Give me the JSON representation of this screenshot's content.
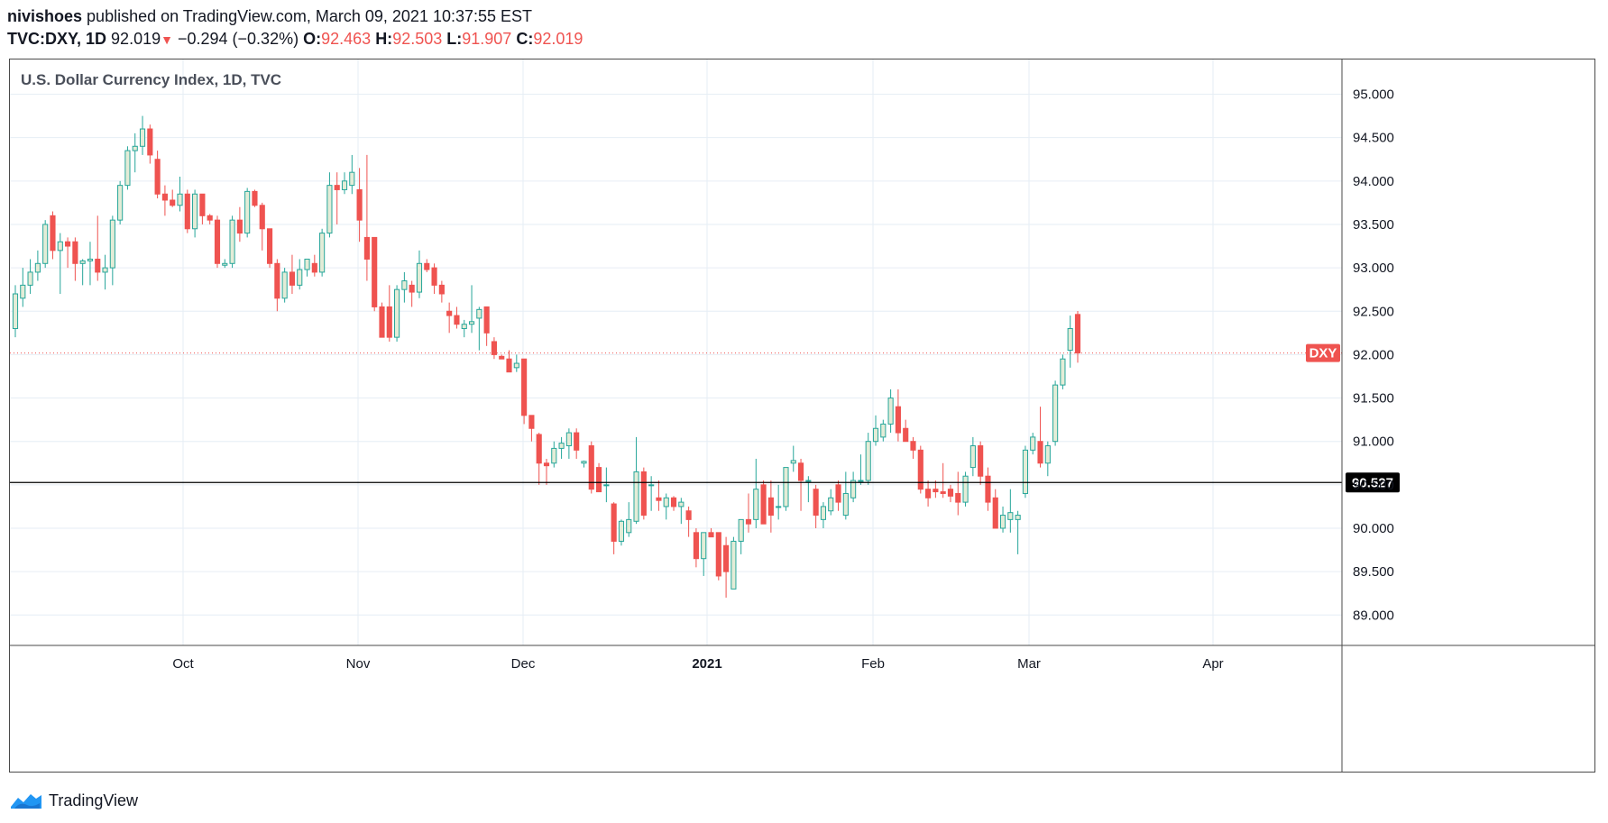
{
  "header": {
    "author": "nivishoes",
    "published_text": "published on TradingView.com, March 09, 2021 10:37:55 EST",
    "symbol": "TVC:DXY, 1D",
    "last": "92.019",
    "change": "−0.294 (−0.32%)",
    "o_label": "O:",
    "o_value": "92.463",
    "h_label": "H:",
    "h_value": "92.503",
    "l_label": "L:",
    "l_value": "91.907",
    "c_label": "C:",
    "c_value": "92.019"
  },
  "footer": {
    "brand": "TradingView"
  },
  "colors": {
    "up_fill": "#e3ecd7",
    "up_border": "#26a69a",
    "down_fill": "#ef5350",
    "down_border": "#ef5350",
    "grid": "#e6eef5",
    "axis_text": "#131722",
    "price_line": "#ef5350",
    "h_line": "#000000"
  },
  "chart_data": {
    "type": "candlestick",
    "title": "U.S. Dollar Currency Index, 1D, TVC",
    "symbol_tag": "DXY",
    "last_price_label": "92.019",
    "last_price": 92.019,
    "horizontal_line_label": "90.527",
    "horizontal_line": 90.527,
    "ylim": [
      88.65,
      95.4
    ],
    "y_ticks": [
      "95.000",
      "94.500",
      "94.000",
      "93.500",
      "93.000",
      "92.500",
      "92.000",
      "91.500",
      "91.000",
      "90.500",
      "90.000",
      "89.500",
      "89.000"
    ],
    "x_ticks": [
      "Oct",
      "Nov",
      "Dec",
      "2021",
      "Feb",
      "Mar",
      "Apr"
    ],
    "grid": true,
    "candles": [
      {
        "o": 92.3,
        "h": 92.8,
        "l": 92.2,
        "c": 92.7
      },
      {
        "o": 92.65,
        "h": 93.0,
        "l": 92.55,
        "c": 92.8
      },
      {
        "o": 92.8,
        "h": 93.1,
        "l": 92.7,
        "c": 92.95
      },
      {
        "o": 92.95,
        "h": 93.2,
        "l": 92.85,
        "c": 93.05
      },
      {
        "o": 93.05,
        "h": 93.55,
        "l": 93.0,
        "c": 93.5
      },
      {
        "o": 93.6,
        "h": 93.65,
        "l": 93.1,
        "c": 93.2
      },
      {
        "o": 93.2,
        "h": 93.4,
        "l": 92.7,
        "c": 93.3
      },
      {
        "o": 93.3,
        "h": 93.35,
        "l": 93.0,
        "c": 93.25
      },
      {
        "o": 93.3,
        "h": 93.35,
        "l": 92.85,
        "c": 93.05
      },
      {
        "o": 93.05,
        "h": 93.1,
        "l": 92.8,
        "c": 93.08
      },
      {
        "o": 93.08,
        "h": 93.3,
        "l": 92.8,
        "c": 93.1
      },
      {
        "o": 93.1,
        "h": 93.6,
        "l": 92.85,
        "c": 92.95
      },
      {
        "o": 92.95,
        "h": 93.15,
        "l": 92.75,
        "c": 93.0
      },
      {
        "o": 93.0,
        "h": 93.6,
        "l": 92.8,
        "c": 93.55
      },
      {
        "o": 93.55,
        "h": 94.0,
        "l": 93.5,
        "c": 93.95
      },
      {
        "o": 93.95,
        "h": 94.4,
        "l": 93.9,
        "c": 94.35
      },
      {
        "o": 94.35,
        "h": 94.55,
        "l": 94.1,
        "c": 94.4
      },
      {
        "o": 94.4,
        "h": 94.75,
        "l": 94.3,
        "c": 94.6
      },
      {
        "o": 94.6,
        "h": 94.65,
        "l": 94.2,
        "c": 94.3
      },
      {
        "o": 94.25,
        "h": 94.35,
        "l": 93.8,
        "c": 93.85
      },
      {
        "o": 93.85,
        "h": 93.95,
        "l": 93.6,
        "c": 93.78
      },
      {
        "o": 93.78,
        "h": 93.9,
        "l": 93.7,
        "c": 93.72
      },
      {
        "o": 93.72,
        "h": 94.05,
        "l": 93.65,
        "c": 93.85
      },
      {
        "o": 93.85,
        "h": 93.9,
        "l": 93.4,
        "c": 93.45
      },
      {
        "o": 93.45,
        "h": 93.9,
        "l": 93.35,
        "c": 93.85
      },
      {
        "o": 93.85,
        "h": 93.85,
        "l": 93.5,
        "c": 93.6
      },
      {
        "o": 93.6,
        "h": 93.62,
        "l": 93.5,
        "c": 93.55
      },
      {
        "o": 93.55,
        "h": 93.6,
        "l": 93.0,
        "c": 93.05
      },
      {
        "o": 93.03,
        "h": 93.1,
        "l": 93.0,
        "c": 93.05
      },
      {
        "o": 93.05,
        "h": 93.6,
        "l": 93.0,
        "c": 93.55
      },
      {
        "o": 93.55,
        "h": 93.7,
        "l": 93.3,
        "c": 93.4
      },
      {
        "o": 93.4,
        "h": 93.92,
        "l": 93.35,
        "c": 93.88
      },
      {
        "o": 93.88,
        "h": 93.9,
        "l": 93.7,
        "c": 93.72
      },
      {
        "o": 93.72,
        "h": 93.75,
        "l": 93.2,
        "c": 93.45
      },
      {
        "o": 93.45,
        "h": 93.45,
        "l": 93.0,
        "c": 93.05
      },
      {
        "o": 93.05,
        "h": 93.1,
        "l": 92.5,
        "c": 92.65
      },
      {
        "o": 92.65,
        "h": 93.0,
        "l": 92.6,
        "c": 92.95
      },
      {
        "o": 92.95,
        "h": 93.15,
        "l": 92.7,
        "c": 92.8
      },
      {
        "o": 92.8,
        "h": 93.1,
        "l": 92.75,
        "c": 92.98
      },
      {
        "o": 92.98,
        "h": 93.1,
        "l": 92.9,
        "c": 93.1
      },
      {
        "o": 93.05,
        "h": 93.15,
        "l": 92.9,
        "c": 92.95
      },
      {
        "o": 92.95,
        "h": 93.45,
        "l": 92.9,
        "c": 93.4
      },
      {
        "o": 93.4,
        "h": 94.1,
        "l": 93.35,
        "c": 93.95
      },
      {
        "o": 93.95,
        "h": 94.1,
        "l": 93.5,
        "c": 93.9
      },
      {
        "o": 93.9,
        "h": 94.1,
        "l": 93.85,
        "c": 94.0
      },
      {
        "o": 93.95,
        "h": 94.3,
        "l": 93.85,
        "c": 94.1
      },
      {
        "o": 93.9,
        "h": 94.15,
        "l": 93.3,
        "c": 93.55
      },
      {
        "o": 93.35,
        "h": 94.3,
        "l": 92.85,
        "c": 93.1
      },
      {
        "o": 93.35,
        "h": 93.35,
        "l": 92.5,
        "c": 92.55
      },
      {
        "o": 92.55,
        "h": 92.6,
        "l": 92.25,
        "c": 92.2
      },
      {
        "o": 92.55,
        "h": 92.8,
        "l": 92.15,
        "c": 92.2
      },
      {
        "o": 92.2,
        "h": 92.8,
        "l": 92.15,
        "c": 92.75
      },
      {
        "o": 92.75,
        "h": 92.95,
        "l": 92.6,
        "c": 92.85
      },
      {
        "o": 92.8,
        "h": 92.85,
        "l": 92.55,
        "c": 92.72
      },
      {
        "o": 92.72,
        "h": 93.2,
        "l": 92.65,
        "c": 93.05
      },
      {
        "o": 93.05,
        "h": 93.1,
        "l": 92.95,
        "c": 92.98
      },
      {
        "o": 93.0,
        "h": 93.05,
        "l": 92.7,
        "c": 92.8
      },
      {
        "o": 92.8,
        "h": 92.85,
        "l": 92.6,
        "c": 92.7
      },
      {
        "o": 92.5,
        "h": 92.6,
        "l": 92.25,
        "c": 92.45
      },
      {
        "o": 92.45,
        "h": 92.55,
        "l": 92.3,
        "c": 92.35
      },
      {
        "o": 92.3,
        "h": 92.4,
        "l": 92.2,
        "c": 92.35
      },
      {
        "o": 92.35,
        "h": 92.8,
        "l": 92.25,
        "c": 92.38
      },
      {
        "o": 92.42,
        "h": 92.55,
        "l": 92.05,
        "c": 92.52
      },
      {
        "o": 92.55,
        "h": 92.55,
        "l": 92.1,
        "c": 92.25
      },
      {
        "o": 92.15,
        "h": 92.2,
        "l": 91.95,
        "c": 92.0
      },
      {
        "o": 91.98,
        "h": 92.0,
        "l": 91.95,
        "c": 91.95
      },
      {
        "o": 91.95,
        "h": 92.05,
        "l": 91.8,
        "c": 91.8
      },
      {
        "o": 91.85,
        "h": 92.0,
        "l": 91.8,
        "c": 91.9
      },
      {
        "o": 91.95,
        "h": 91.95,
        "l": 91.2,
        "c": 91.3
      },
      {
        "o": 91.3,
        "h": 91.3,
        "l": 91.0,
        "c": 91.15
      },
      {
        "o": 91.08,
        "h": 91.1,
        "l": 90.5,
        "c": 90.75
      },
      {
        "o": 90.75,
        "h": 90.8,
        "l": 90.5,
        "c": 90.72
      },
      {
        "o": 90.75,
        "h": 91.0,
        "l": 90.7,
        "c": 90.92
      },
      {
        "o": 90.92,
        "h": 91.05,
        "l": 90.8,
        "c": 90.98
      },
      {
        "o": 90.95,
        "h": 91.15,
        "l": 90.8,
        "c": 91.1
      },
      {
        "o": 91.1,
        "h": 91.15,
        "l": 90.8,
        "c": 90.9
      },
      {
        "o": 90.75,
        "h": 90.78,
        "l": 90.7,
        "c": 90.77
      },
      {
        "o": 90.95,
        "h": 91.0,
        "l": 90.4,
        "c": 90.45
      },
      {
        "o": 90.7,
        "h": 90.75,
        "l": 90.45,
        "c": 90.42
      },
      {
        "o": 90.5,
        "h": 90.7,
        "l": 90.3,
        "c": 90.5
      },
      {
        "o": 90.28,
        "h": 90.3,
        "l": 89.7,
        "c": 89.85
      },
      {
        "o": 89.85,
        "h": 90.1,
        "l": 89.8,
        "c": 90.08
      },
      {
        "o": 89.95,
        "h": 90.3,
        "l": 89.9,
        "c": 90.1
      },
      {
        "o": 90.08,
        "h": 91.05,
        "l": 90.05,
        "c": 90.65
      },
      {
        "o": 90.65,
        "h": 90.7,
        "l": 90.1,
        "c": 90.15
      },
      {
        "o": 90.5,
        "h": 90.6,
        "l": 90.2,
        "c": 90.5
      },
      {
        "o": 90.35,
        "h": 90.55,
        "l": 90.2,
        "c": 90.32
      },
      {
        "o": 90.25,
        "h": 90.4,
        "l": 90.1,
        "c": 90.35
      },
      {
        "o": 90.35,
        "h": 90.37,
        "l": 90.2,
        "c": 90.25
      },
      {
        "o": 90.25,
        "h": 90.35,
        "l": 90.05,
        "c": 90.3
      },
      {
        "o": 90.2,
        "h": 90.25,
        "l": 89.9,
        "c": 90.1
      },
      {
        "o": 89.95,
        "h": 90.0,
        "l": 89.55,
        "c": 89.65
      },
      {
        "o": 89.65,
        "h": 89.95,
        "l": 89.45,
        "c": 89.95
      },
      {
        "o": 89.95,
        "h": 90.0,
        "l": 89.9,
        "c": 89.9
      },
      {
        "o": 89.95,
        "h": 89.95,
        "l": 89.4,
        "c": 89.45
      },
      {
        "o": 89.8,
        "h": 89.9,
        "l": 89.2,
        "c": 89.5
      },
      {
        "o": 89.3,
        "h": 89.9,
        "l": 89.3,
        "c": 89.85
      },
      {
        "o": 89.85,
        "h": 90.1,
        "l": 89.7,
        "c": 90.1
      },
      {
        "o": 90.1,
        "h": 90.4,
        "l": 89.95,
        "c": 90.05
      },
      {
        "o": 90.1,
        "h": 90.8,
        "l": 90.0,
        "c": 90.45
      },
      {
        "o": 90.5,
        "h": 90.55,
        "l": 90.1,
        "c": 90.05
      },
      {
        "o": 90.35,
        "h": 90.55,
        "l": 89.95,
        "c": 90.15
      },
      {
        "o": 90.25,
        "h": 90.5,
        "l": 90.1,
        "c": 90.25
      },
      {
        "o": 90.25,
        "h": 90.7,
        "l": 90.2,
        "c": 90.7
      },
      {
        "o": 90.75,
        "h": 90.95,
        "l": 90.65,
        "c": 90.78
      },
      {
        "o": 90.75,
        "h": 90.8,
        "l": 90.2,
        "c": 90.55
      },
      {
        "o": 90.55,
        "h": 90.6,
        "l": 90.3,
        "c": 90.55
      },
      {
        "o": 90.45,
        "h": 90.5,
        "l": 90.0,
        "c": 90.15
      },
      {
        "o": 90.1,
        "h": 90.3,
        "l": 90.0,
        "c": 90.25
      },
      {
        "o": 90.2,
        "h": 90.45,
        "l": 90.15,
        "c": 90.35
      },
      {
        "o": 90.5,
        "h": 90.55,
        "l": 90.2,
        "c": 90.3
      },
      {
        "o": 90.15,
        "h": 90.65,
        "l": 90.1,
        "c": 90.4
      },
      {
        "o": 90.35,
        "h": 90.65,
        "l": 90.3,
        "c": 90.55
      },
      {
        "o": 90.55,
        "h": 90.85,
        "l": 90.5,
        "c": 90.55
      },
      {
        "o": 90.55,
        "h": 91.1,
        "l": 90.5,
        "c": 91.0
      },
      {
        "o": 91.0,
        "h": 91.3,
        "l": 90.95,
        "c": 91.15
      },
      {
        "o": 91.05,
        "h": 91.25,
        "l": 91.0,
        "c": 91.2
      },
      {
        "o": 91.2,
        "h": 91.6,
        "l": 91.1,
        "c": 91.5
      },
      {
        "o": 91.4,
        "h": 91.6,
        "l": 91.0,
        "c": 91.1
      },
      {
        "o": 91.15,
        "h": 91.25,
        "l": 91.0,
        "c": 91.0
      },
      {
        "o": 91.0,
        "h": 91.05,
        "l": 90.8,
        "c": 90.9
      },
      {
        "o": 90.9,
        "h": 90.95,
        "l": 90.4,
        "c": 90.45
      },
      {
        "o": 90.45,
        "h": 90.55,
        "l": 90.25,
        "c": 90.35
      },
      {
        "o": 90.45,
        "h": 90.55,
        "l": 90.35,
        "c": 90.42
      },
      {
        "o": 90.42,
        "h": 90.75,
        "l": 90.35,
        "c": 90.4
      },
      {
        "o": 90.45,
        "h": 90.5,
        "l": 90.3,
        "c": 90.37
      },
      {
        "o": 90.4,
        "h": 90.65,
        "l": 90.15,
        "c": 90.3
      },
      {
        "o": 90.3,
        "h": 90.65,
        "l": 90.25,
        "c": 90.6
      },
      {
        "o": 90.7,
        "h": 91.05,
        "l": 90.6,
        "c": 90.95
      },
      {
        "o": 90.95,
        "h": 91.0,
        "l": 90.5,
        "c": 90.6
      },
      {
        "o": 90.6,
        "h": 90.7,
        "l": 90.2,
        "c": 90.3
      },
      {
        "o": 90.35,
        "h": 90.45,
        "l": 90.0,
        "c": 90.0
      },
      {
        "o": 90.0,
        "h": 90.25,
        "l": 89.95,
        "c": 90.15
      },
      {
        "o": 90.1,
        "h": 90.45,
        "l": 89.95,
        "c": 90.18
      },
      {
        "o": 90.1,
        "h": 90.2,
        "l": 89.7,
        "c": 90.15
      },
      {
        "o": 90.4,
        "h": 90.95,
        "l": 90.35,
        "c": 90.9
      },
      {
        "o": 90.9,
        "h": 91.1,
        "l": 90.85,
        "c": 91.05
      },
      {
        "o": 91.0,
        "h": 91.4,
        "l": 90.7,
        "c": 90.75
      },
      {
        "o": 90.75,
        "h": 91.0,
        "l": 90.6,
        "c": 90.95
      },
      {
        "o": 91.0,
        "h": 91.7,
        "l": 90.95,
        "c": 91.65
      },
      {
        "o": 91.65,
        "h": 92.0,
        "l": 91.6,
        "c": 91.95
      },
      {
        "o": 92.05,
        "h": 92.45,
        "l": 91.85,
        "c": 92.3
      },
      {
        "o": 92.463,
        "h": 92.503,
        "l": 91.907,
        "c": 92.019
      }
    ]
  }
}
